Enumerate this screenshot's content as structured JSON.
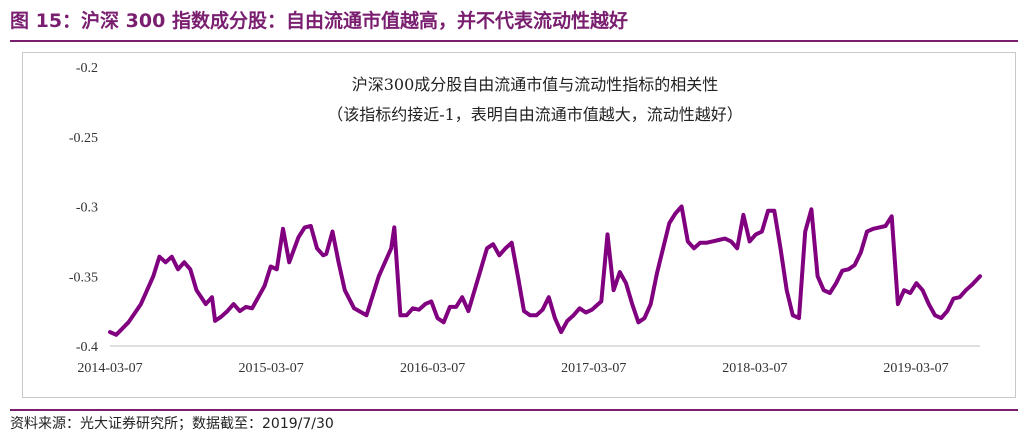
{
  "figure": {
    "title": "图 15：沪深 300 指数成分股：自由流通市值越高，并不代表流动性越好",
    "source": "资料来源：光大证券研究所；数据截至：2019/7/30"
  },
  "colors": {
    "title": "#7a1f70",
    "series": "#800080"
  },
  "chart_data": {
    "type": "line",
    "title": "沪深300成分股自由流通市值与流动性指标的相关性",
    "subtitle": "（该指标约接近-1，表明自由流通市值越大，流动性越好）",
    "xlabel": "",
    "ylabel": "",
    "ylim": [
      -0.4,
      -0.2
    ],
    "yticks": [
      -0.2,
      -0.25,
      -0.3,
      -0.35,
      -0.4
    ],
    "yticklabels": [
      "-0.2",
      "-0.25",
      "-0.3",
      "-0.35",
      "-0.4"
    ],
    "xlim": [
      "2014-03-07",
      "2019-07-30"
    ],
    "xticklabels": [
      "2014-03-07",
      "2015-03-07",
      "2016-03-07",
      "2017-03-07",
      "2018-03-07",
      "2019-03-07"
    ],
    "grid": false,
    "legend": "none",
    "series": [
      {
        "name": "",
        "x": [
          "2014-03-07",
          "2014-03-21",
          "2014-04-18",
          "2014-05-16",
          "2014-06-13",
          "2014-06-27",
          "2014-07-11",
          "2014-07-25",
          "2014-08-08",
          "2014-08-22",
          "2014-09-05",
          "2014-09-19",
          "2014-10-10",
          "2014-10-24",
          "2014-10-31",
          "2014-11-14",
          "2014-11-28",
          "2014-12-12",
          "2014-12-26",
          "2015-01-09",
          "2015-01-23",
          "2015-02-06",
          "2015-02-20",
          "2015-03-06",
          "2015-03-20",
          "2015-04-03",
          "2015-04-17",
          "2015-05-08",
          "2015-05-22",
          "2015-06-05",
          "2015-06-19",
          "2015-07-03",
          "2015-07-10",
          "2015-07-24",
          "2015-08-07",
          "2015-08-21",
          "2015-09-11",
          "2015-10-09",
          "2015-11-06",
          "2015-12-04",
          "2015-12-11",
          "2015-12-25",
          "2016-01-08",
          "2016-01-22",
          "2016-02-05",
          "2016-02-19",
          "2016-03-04",
          "2016-03-18",
          "2016-04-01",
          "2016-04-15",
          "2016-04-29",
          "2016-05-13",
          "2016-05-27",
          "2016-06-10",
          "2016-06-24",
          "2016-07-08",
          "2016-07-22",
          "2016-08-05",
          "2016-08-19",
          "2016-09-02",
          "2016-09-16",
          "2016-09-30",
          "2016-10-14",
          "2016-10-28",
          "2016-11-11",
          "2016-11-25",
          "2016-12-09",
          "2016-12-23",
          "2017-01-06",
          "2017-01-20",
          "2017-02-03",
          "2017-02-17",
          "2017-03-03",
          "2017-03-10",
          "2017-03-24",
          "2017-04-07",
          "2017-04-21",
          "2017-05-05",
          "2017-05-19",
          "2017-06-02",
          "2017-06-16",
          "2017-06-30",
          "2017-07-14",
          "2017-07-28",
          "2017-08-11",
          "2017-08-25",
          "2017-09-08",
          "2017-09-22",
          "2017-10-06",
          "2017-10-20",
          "2017-11-03",
          "2017-11-17",
          "2017-12-01",
          "2017-12-15",
          "2017-12-29",
          "2018-01-12",
          "2018-01-26",
          "2018-02-09",
          "2018-02-23",
          "2018-03-09",
          "2018-03-23",
          "2018-04-06",
          "2018-04-20",
          "2018-05-04",
          "2018-05-18",
          "2018-06-01",
          "2018-06-15",
          "2018-06-29",
          "2018-07-13",
          "2018-07-27",
          "2018-08-10",
          "2018-08-24",
          "2018-09-07",
          "2018-09-21",
          "2018-10-05",
          "2018-10-19",
          "2018-11-02",
          "2018-11-16",
          "2018-11-30",
          "2018-12-14",
          "2018-12-28",
          "2019-01-11",
          "2019-01-25",
          "2019-02-08",
          "2019-02-22",
          "2019-03-08",
          "2019-03-22",
          "2019-04-05",
          "2019-04-19",
          "2019-05-03",
          "2019-05-17",
          "2019-05-31",
          "2019-06-14",
          "2019-06-28",
          "2019-07-12",
          "2019-07-30"
        ],
        "values": [
          -0.39,
          -0.392,
          -0.383,
          -0.37,
          -0.35,
          -0.336,
          -0.34,
          -0.336,
          -0.345,
          -0.34,
          -0.345,
          -0.36,
          -0.37,
          -0.365,
          -0.382,
          -0.379,
          -0.375,
          -0.37,
          -0.375,
          -0.372,
          -0.373,
          -0.365,
          -0.357,
          -0.343,
          -0.345,
          -0.316,
          -0.34,
          -0.322,
          -0.315,
          -0.314,
          -0.33,
          -0.335,
          -0.334,
          -0.318,
          -0.34,
          -0.36,
          -0.373,
          -0.378,
          -0.35,
          -0.33,
          -0.315,
          -0.378,
          -0.378,
          -0.373,
          -0.374,
          -0.37,
          -0.368,
          -0.38,
          -0.383,
          -0.372,
          -0.372,
          -0.365,
          -0.375,
          -0.36,
          -0.345,
          -0.33,
          -0.327,
          -0.335,
          -0.33,
          -0.326,
          -0.35,
          -0.375,
          -0.378,
          -0.378,
          -0.374,
          -0.365,
          -0.38,
          -0.39,
          -0.382,
          -0.378,
          -0.373,
          -0.376,
          -0.374,
          -0.372,
          -0.368,
          -0.32,
          -0.36,
          -0.347,
          -0.355,
          -0.37,
          -0.383,
          -0.38,
          -0.37,
          -0.348,
          -0.33,
          -0.312,
          -0.305,
          -0.3,
          -0.325,
          -0.33,
          -0.326,
          -0.326,
          -0.325,
          -0.324,
          -0.323,
          -0.325,
          -0.33,
          -0.306,
          -0.325,
          -0.32,
          -0.318,
          -0.303,
          -0.303,
          -0.33,
          -0.36,
          -0.378,
          -0.38,
          -0.318,
          -0.302,
          -0.35,
          -0.36,
          -0.362,
          -0.355,
          -0.346,
          -0.345,
          -0.342,
          -0.333,
          -0.318,
          -0.316,
          -0.315,
          -0.314,
          -0.307,
          -0.37,
          -0.36,
          -0.362,
          -0.355,
          -0.36,
          -0.37,
          -0.378,
          -0.38,
          -0.375,
          -0.366,
          -0.365,
          -0.36,
          -0.356,
          -0.35
        ]
      }
    ]
  }
}
